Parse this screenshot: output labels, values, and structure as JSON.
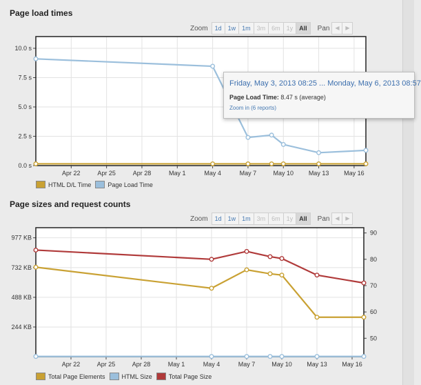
{
  "sections": {
    "load": {
      "title": "Page load times"
    },
    "sizes": {
      "title": "Page sizes and request counts"
    }
  },
  "controls": {
    "zoom_label": "Zoom",
    "zoom_options": [
      {
        "label": "1d",
        "state": "enabled"
      },
      {
        "label": "1w",
        "state": "enabled"
      },
      {
        "label": "1m",
        "state": "enabled"
      },
      {
        "label": "3m",
        "state": "disabled"
      },
      {
        "label": "6m",
        "state": "disabled"
      },
      {
        "label": "1y",
        "state": "disabled"
      },
      {
        "label": "All",
        "state": "selected"
      }
    ],
    "pan_label": "Pan",
    "pan_prev_icon": "chevron-left-icon",
    "pan_next_icon": "chevron-right-icon"
  },
  "tooltip": {
    "title": "Friday, May 3, 2013 08:25 ... Monday, May 6, 2013 08:57",
    "metric_label": "Page Load Time:",
    "metric_value": "8.47 s (average)",
    "link_text": "Zoom in (6 reports)"
  },
  "chart_data": [
    {
      "type": "line",
      "title": "Page load times",
      "x_ticks": [
        "Apr 22",
        "Apr 25",
        "Apr 28",
        "May 1",
        "May 4",
        "May 7",
        "May 10",
        "May 13",
        "May 16"
      ],
      "x_range": [
        "2013-04-19",
        "2013-05-17"
      ],
      "y_ticks": [
        "0.0 s",
        "2.5 s",
        "5.0 s",
        "7.5 s",
        "10.0 s"
      ],
      "ylim": [
        0,
        11
      ],
      "series": [
        {
          "name": "HTML D/L Time",
          "color": "#c9a133",
          "points": [
            [
              "2013-04-19",
              0.15
            ],
            [
              "2013-05-04",
              0.15
            ],
            [
              "2013-05-07",
              0.15
            ],
            [
              "2013-05-09",
              0.15
            ],
            [
              "2013-05-10",
              0.15
            ],
            [
              "2013-05-13",
              0.15
            ],
            [
              "2013-05-17",
              0.15
            ]
          ]
        },
        {
          "name": "Page Load Time",
          "color": "#9bbfdc",
          "points": [
            [
              "2013-04-19",
              9.1
            ],
            [
              "2013-05-04",
              8.47
            ],
            [
              "2013-05-07",
              2.4
            ],
            [
              "2013-05-09",
              2.6
            ],
            [
              "2013-05-10",
              1.8
            ],
            [
              "2013-05-13",
              1.1
            ],
            [
              "2013-05-17",
              1.3
            ]
          ]
        }
      ]
    },
    {
      "type": "line",
      "title": "Page sizes and request counts",
      "x_ticks": [
        "Apr 22",
        "Apr 25",
        "Apr 28",
        "May 1",
        "May 4",
        "May 7",
        "May 10",
        "May 13",
        "May 16"
      ],
      "x_range": [
        "2013-04-19",
        "2013-05-17"
      ],
      "y_left_ticks": [
        "244 KB",
        "488 KB",
        "732 KB",
        "977 KB"
      ],
      "ylim_left_kb": [
        0,
        1060
      ],
      "y_right_ticks": [
        "50",
        "60",
        "70",
        "80",
        "90"
      ],
      "ylim_right": [
        43,
        92
      ],
      "series": [
        {
          "name": "Total Page Elements",
          "color": "#c9a133",
          "axis": "right",
          "points": [
            [
              "2013-04-19",
              77
            ],
            [
              "2013-05-04",
              69
            ],
            [
              "2013-05-07",
              76
            ],
            [
              "2013-05-09",
              74.5
            ],
            [
              "2013-05-10",
              74
            ],
            [
              "2013-05-13",
              58
            ],
            [
              "2013-05-17",
              58
            ]
          ]
        },
        {
          "name": "HTML Size",
          "color": "#9bbfdc",
          "axis": "left",
          "points": [
            [
              "2013-04-19",
              2
            ],
            [
              "2013-05-04",
              2
            ],
            [
              "2013-05-07",
              2
            ],
            [
              "2013-05-09",
              2
            ],
            [
              "2013-05-10",
              2
            ],
            [
              "2013-05-13",
              2
            ],
            [
              "2013-05-17",
              2
            ]
          ]
        },
        {
          "name": "Total Page Size",
          "color": "#b03a3a",
          "axis": "right",
          "points": [
            [
              "2013-04-19",
              83.5
            ],
            [
              "2013-05-04",
              80
            ],
            [
              "2013-05-07",
              83
            ],
            [
              "2013-05-09",
              81
            ],
            [
              "2013-05-10",
              80.3
            ],
            [
              "2013-05-13",
              74
            ],
            [
              "2013-05-17",
              71
            ]
          ]
        }
      ]
    }
  ]
}
